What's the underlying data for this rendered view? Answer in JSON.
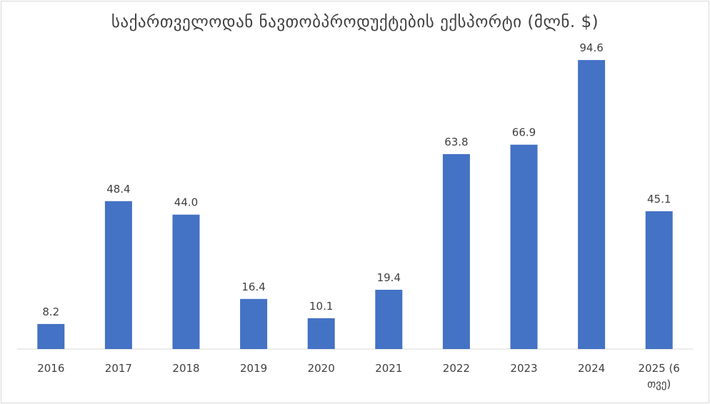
{
  "chart_data": {
    "type": "bar",
    "title": "საქართველოდან ნავთობპროდუქტების ექსპორტი (მლნ. $)",
    "categories": [
      "2016",
      "2017",
      "2018",
      "2019",
      "2020",
      "2021",
      "2022",
      "2023",
      "2024",
      "2025 (6 თვე)"
    ],
    "category_lines": [
      [
        "2016"
      ],
      [
        "2017"
      ],
      [
        "2018"
      ],
      [
        "2019"
      ],
      [
        "2020"
      ],
      [
        "2021"
      ],
      [
        "2022"
      ],
      [
        "2023"
      ],
      [
        "2024"
      ],
      [
        "2025 (6",
        "თვე)"
      ]
    ],
    "values": [
      8.2,
      48.4,
      44.0,
      16.4,
      10.1,
      19.4,
      63.8,
      66.9,
      94.6,
      45.1
    ],
    "value_labels": [
      "8.2",
      "48.4",
      "44.0",
      "16.4",
      "10.1",
      "19.4",
      "63.8",
      "66.9",
      "94.6",
      "45.1"
    ],
    "xlabel": "",
    "ylabel": "",
    "ylim": [
      0,
      100
    ],
    "grid": false,
    "legend": "none",
    "bar_color": "#4472c4",
    "axis_color": "#d9d9d9",
    "text_color": "#404040"
  }
}
